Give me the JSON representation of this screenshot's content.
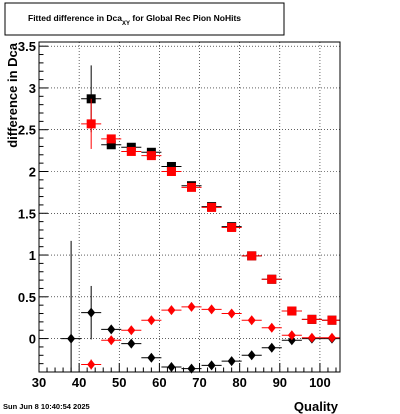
{
  "title": {
    "main": "Fitted difference in Dca",
    "sub": "XY",
    "rest": " for Global Rec Pion NoHits"
  },
  "footer": {
    "timestamp": "Sun Jun  8 10:40:54 2025"
  },
  "colors": {
    "black_series": "#000000",
    "red_series": "#ff0000",
    "grid": "#000000",
    "frame": "#000000"
  },
  "chart_data": {
    "type": "scatter",
    "xlabel": "Quality",
    "ylabel": "difference in Dca",
    "xlim": [
      30,
      105
    ],
    "ylim": [
      -0.4,
      3.55
    ],
    "grid": true,
    "x_ticks": [
      30,
      40,
      50,
      60,
      70,
      80,
      90,
      100
    ],
    "x_tick_labels": [
      "30",
      "40",
      "50",
      "60",
      "70",
      "80",
      "90",
      "100"
    ],
    "y_ticks": [
      0,
      0.5,
      1,
      1.5,
      2,
      2.5,
      3,
      3.5
    ],
    "y_tick_labels": [
      "0",
      "0.5",
      "1",
      "1.5",
      "2",
      "2.5",
      "3",
      "3.5"
    ],
    "bin_half_width": 2.5,
    "series": [
      {
        "marker": "square",
        "color": "black",
        "points": [
          {
            "x": 43,
            "y": 2.87,
            "yerr": 0.4
          },
          {
            "x": 48,
            "y": 2.32,
            "yerr": 0.04
          },
          {
            "x": 53,
            "y": 2.29,
            "yerr": 0.03
          },
          {
            "x": 58,
            "y": 2.23,
            "yerr": 0.03
          },
          {
            "x": 63,
            "y": 2.06,
            "yerr": 0.02
          },
          {
            "x": 68,
            "y": 1.83,
            "yerr": 0.02
          },
          {
            "x": 73,
            "y": 1.58,
            "yerr": 0.02
          },
          {
            "x": 78,
            "y": 1.34,
            "yerr": 0.02
          },
          {
            "x": 83,
            "y": 0.99,
            "yerr": 0.02
          },
          {
            "x": 88,
            "y": 0.71,
            "yerr": 0.02
          },
          {
            "x": 93,
            "y": 0.33,
            "yerr": 0.02
          },
          {
            "x": 98,
            "y": 0.23,
            "yerr": 0.02
          },
          {
            "x": 103,
            "y": 0.22,
            "yerr": 0.02
          }
        ]
      },
      {
        "marker": "square",
        "color": "red",
        "points": [
          {
            "x": 43,
            "y": 2.57,
            "yerr": 0.3
          },
          {
            "x": 48,
            "y": 2.39,
            "yerr": 0.04
          },
          {
            "x": 53,
            "y": 2.24,
            "yerr": 0.03
          },
          {
            "x": 58,
            "y": 2.19,
            "yerr": 0.03
          },
          {
            "x": 63,
            "y": 2.0,
            "yerr": 0.02
          },
          {
            "x": 68,
            "y": 1.81,
            "yerr": 0.02
          },
          {
            "x": 73,
            "y": 1.57,
            "yerr": 0.02
          },
          {
            "x": 78,
            "y": 1.33,
            "yerr": 0.02
          },
          {
            "x": 83,
            "y": 0.99,
            "yerr": 0.02
          },
          {
            "x": 88,
            "y": 0.71,
            "yerr": 0.02
          },
          {
            "x": 93,
            "y": 0.33,
            "yerr": 0.02
          },
          {
            "x": 98,
            "y": 0.23,
            "yerr": 0.02
          },
          {
            "x": 103,
            "y": 0.22,
            "yerr": 0.02
          }
        ]
      },
      {
        "marker": "diamond",
        "color": "black",
        "points": [
          {
            "x": 38,
            "y": 0.0,
            "yerr": 1.17
          },
          {
            "x": 43,
            "y": 0.31,
            "yerr": 0.32
          },
          {
            "x": 48,
            "y": 0.11,
            "yerr": 0.03
          },
          {
            "x": 53,
            "y": -0.06,
            "yerr": 0.02
          },
          {
            "x": 58,
            "y": -0.23,
            "yerr": 0.02
          },
          {
            "x": 63,
            "y": -0.34,
            "yerr": 0.02
          },
          {
            "x": 68,
            "y": -0.36,
            "yerr": 0.02
          },
          {
            "x": 73,
            "y": -0.32,
            "yerr": 0.02
          },
          {
            "x": 78,
            "y": -0.27,
            "yerr": 0.02
          },
          {
            "x": 83,
            "y": -0.2,
            "yerr": 0.02
          },
          {
            "x": 88,
            "y": -0.11,
            "yerr": 0.02
          },
          {
            "x": 93,
            "y": -0.02,
            "yerr": 0.02
          },
          {
            "x": 98,
            "y": 0.0,
            "yerr": 0.02
          },
          {
            "x": 103,
            "y": 0.0,
            "yerr": 0.02
          }
        ]
      },
      {
        "marker": "diamond",
        "color": "red",
        "points": [
          {
            "x": 43,
            "y": -0.31,
            "yerr": 0.06
          },
          {
            "x": 48,
            "y": -0.02,
            "yerr": 0.03
          },
          {
            "x": 53,
            "y": 0.1,
            "yerr": 0.02
          },
          {
            "x": 58,
            "y": 0.22,
            "yerr": 0.02
          },
          {
            "x": 63,
            "y": 0.34,
            "yerr": 0.02
          },
          {
            "x": 68,
            "y": 0.38,
            "yerr": 0.02
          },
          {
            "x": 73,
            "y": 0.35,
            "yerr": 0.02
          },
          {
            "x": 78,
            "y": 0.3,
            "yerr": 0.02
          },
          {
            "x": 83,
            "y": 0.22,
            "yerr": 0.02
          },
          {
            "x": 88,
            "y": 0.13,
            "yerr": 0.02
          },
          {
            "x": 93,
            "y": 0.04,
            "yerr": 0.02
          },
          {
            "x": 98,
            "y": 0.01,
            "yerr": 0.02
          },
          {
            "x": 103,
            "y": 0.01,
            "yerr": 0.02
          }
        ]
      }
    ]
  }
}
